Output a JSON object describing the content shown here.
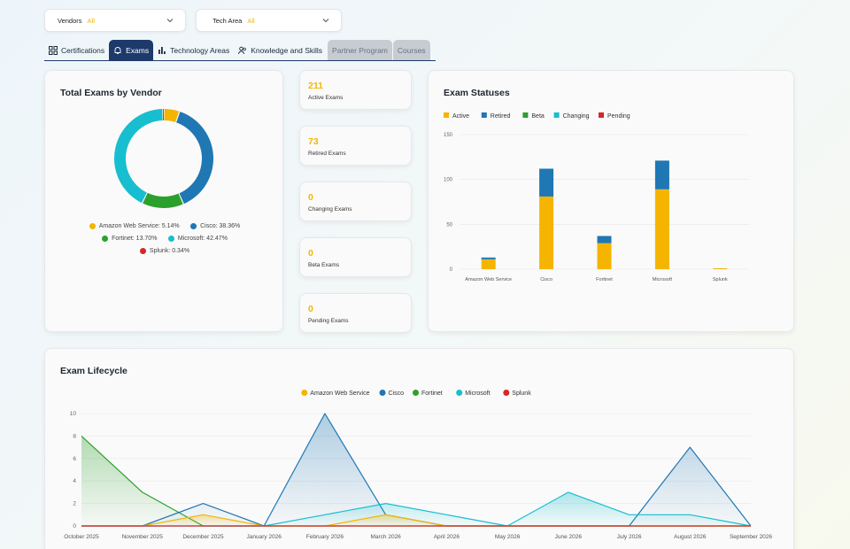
{
  "filters": {
    "vendors": {
      "label": "Vendors",
      "value": "All"
    },
    "tech_area": {
      "label": "Tech Area",
      "value": "All"
    }
  },
  "tabs": [
    {
      "label": "Certifications",
      "icon": "grid-icon",
      "state": "normal"
    },
    {
      "label": "Exams",
      "icon": "bell-icon",
      "state": "active"
    },
    {
      "label": "Technology Areas",
      "icon": "bar-chart-icon",
      "state": "normal"
    },
    {
      "label": "Knowledge and Skills",
      "icon": "users-icon",
      "state": "normal"
    },
    {
      "label": "Partner Program",
      "icon": "",
      "state": "disabled"
    },
    {
      "label": "Courses",
      "icon": "",
      "state": "disabled"
    }
  ],
  "colors": {
    "aws": "#f5b400",
    "cisco": "#1f77b4",
    "fortinet": "#2ca02c",
    "microsoft": "#17becf",
    "splunk": "#d62728",
    "accent": "#f2b705",
    "nav": "#1d3a6b"
  },
  "donut_card": {
    "title": "Total Exams by Vendor",
    "legend": [
      {
        "label": "Amazon Web Service: 5.14%",
        "color": "#f5b400"
      },
      {
        "label": "Cisco: 38.36%",
        "color": "#1f77b4"
      },
      {
        "label": "Fortinet: 13.70%",
        "color": "#2ca02c"
      },
      {
        "label": "Microsoft: 42.47%",
        "color": "#17becf"
      },
      {
        "label": "Splunk: 0.34%",
        "color": "#d62728"
      }
    ]
  },
  "stats": [
    {
      "value": "211",
      "label": "Active Exams"
    },
    {
      "value": "73",
      "label": "Retired Exams"
    },
    {
      "value": "0",
      "label": "Changing Exams"
    },
    {
      "value": "0",
      "label": "Beta Exams"
    },
    {
      "value": "0",
      "label": "Pending Exams"
    }
  ],
  "status_card": {
    "title": "Exam Statuses"
  },
  "lifecycle_card": {
    "title": "Exam Lifecycle"
  },
  "chart_data": [
    {
      "type": "pie",
      "title": "Total Exams by Vendor",
      "variant": "donut",
      "categories": [
        "Amazon Web Service",
        "Cisco",
        "Fortinet",
        "Microsoft",
        "Splunk"
      ],
      "values": [
        5.14,
        38.36,
        13.7,
        42.47,
        0.34
      ],
      "colors": [
        "#f5b400",
        "#1f77b4",
        "#2ca02c",
        "#17becf",
        "#d62728"
      ],
      "legend_position": "bottom"
    },
    {
      "type": "bar",
      "title": "Exam Statuses",
      "stacked": true,
      "categories": [
        "Amazon Web Service",
        "Cisco",
        "Fortinet",
        "Microsoft",
        "Splunk"
      ],
      "series": [
        {
          "name": "Active",
          "color": "#f5b400",
          "values": [
            11,
            81,
            29,
            89,
            1
          ]
        },
        {
          "name": "Retired",
          "color": "#1f77b4",
          "values": [
            2,
            31,
            8,
            32,
            0
          ]
        },
        {
          "name": "Beta",
          "color": "#2ca02c",
          "values": [
            0,
            0,
            0,
            0,
            0
          ]
        },
        {
          "name": "Changing",
          "color": "#17becf",
          "values": [
            0,
            0,
            0,
            0,
            0
          ]
        },
        {
          "name": "Pending",
          "color": "#d62728",
          "values": [
            0,
            0,
            0,
            0,
            0
          ]
        }
      ],
      "yticks": [
        0,
        50,
        100,
        150
      ],
      "ylim": [
        0,
        150
      ],
      "grid": true,
      "legend_position": "top-left"
    },
    {
      "type": "area",
      "title": "Exam Lifecycle",
      "x": [
        "October 2025",
        "November 2025",
        "December 2025",
        "January 2026",
        "February 2026",
        "March 2026",
        "April 2026",
        "May 2026",
        "June 2026",
        "July 2026",
        "August 2026",
        "September 2026"
      ],
      "series": [
        {
          "name": "Amazon Web Service",
          "color": "#f5b400",
          "values": [
            0,
            0,
            1,
            0,
            0,
            1,
            0,
            0,
            0,
            0,
            0,
            0
          ]
        },
        {
          "name": "Cisco",
          "color": "#1f77b4",
          "values": [
            0,
            0,
            2,
            0,
            10,
            1,
            0,
            0,
            0,
            0,
            7,
            0
          ]
        },
        {
          "name": "Fortinet",
          "color": "#2ca02c",
          "values": [
            8,
            3,
            0,
            0,
            0,
            0,
            0,
            0,
            0,
            0,
            0,
            0
          ]
        },
        {
          "name": "Microsoft",
          "color": "#17becf",
          "values": [
            0,
            0,
            0,
            0,
            1,
            2,
            1,
            0,
            3,
            1,
            1,
            0
          ]
        },
        {
          "name": "Splunk",
          "color": "#d62728",
          "values": [
            0,
            0,
            0,
            0,
            0,
            0,
            0,
            0,
            0,
            0,
            0,
            0
          ]
        }
      ],
      "yticks": [
        0,
        2,
        4,
        6,
        8,
        10
      ],
      "ylim": [
        0,
        10
      ],
      "grid": true,
      "legend_position": "top-center"
    }
  ]
}
